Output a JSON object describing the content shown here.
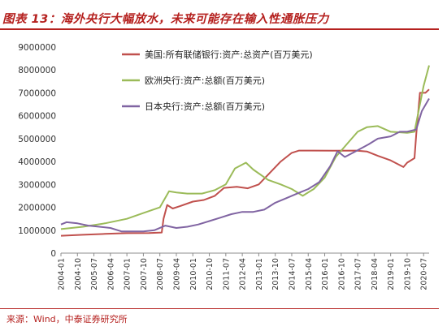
{
  "header": {
    "title": "图表 13：海外央行大幅放水，未来可能存在输入性通胀压力"
  },
  "footer": {
    "source": "来源：Wind，中泰证券研究所"
  },
  "colors": {
    "accent": "#b5211f",
    "fed": "#c0504d",
    "ecb": "#9bbb59",
    "boj": "#8064a2"
  },
  "chart_data": {
    "type": "line",
    "title": "",
    "xlabel": "",
    "ylabel": "",
    "ylim": [
      0,
      9000000
    ],
    "yticks": [
      0,
      1000000,
      2000000,
      3000000,
      4000000,
      5000000,
      6000000,
      7000000,
      8000000,
      9000000
    ],
    "ytick_labels": [
      "0",
      "1000000",
      "2000000",
      "3000000",
      "4000000",
      "5000000",
      "6000000",
      "7000000",
      "8000000",
      "9000000"
    ],
    "xlim": [
      "2004-01",
      "2020-10"
    ],
    "xticks": [
      "2004-01",
      "2004-10",
      "2005-07",
      "2006-04",
      "2007-01",
      "2007-10",
      "2008-07",
      "2009-04",
      "2010-01",
      "2010-10",
      "2011-07",
      "2012-04",
      "2013-01",
      "2013-10",
      "2014-07",
      "2015-04",
      "2016-01",
      "2016-10",
      "2017-07",
      "2018-04",
      "2019-01",
      "2019-10",
      "2020-07"
    ],
    "grid": false,
    "legend_position": "top-center",
    "series": [
      {
        "name": "美国:所有联储银行:资产:总资产(百万美元)",
        "color": "#c0504d",
        "points": [
          [
            "2004-01",
            760000
          ],
          [
            "2005-01",
            800000
          ],
          [
            "2006-01",
            840000
          ],
          [
            "2007-01",
            870000
          ],
          [
            "2008-01",
            880000
          ],
          [
            "2008-08",
            900000
          ],
          [
            "2008-09",
            1500000
          ],
          [
            "2008-11",
            2100000
          ],
          [
            "2009-02",
            1950000
          ],
          [
            "2009-06",
            2050000
          ],
          [
            "2010-01",
            2250000
          ],
          [
            "2010-07",
            2320000
          ],
          [
            "2011-01",
            2500000
          ],
          [
            "2011-06",
            2850000
          ],
          [
            "2012-01",
            2900000
          ],
          [
            "2012-07",
            2830000
          ],
          [
            "2013-01",
            3000000
          ],
          [
            "2013-07",
            3500000
          ],
          [
            "2014-01",
            4000000
          ],
          [
            "2014-07",
            4380000
          ],
          [
            "2014-11",
            4480000
          ],
          [
            "2015-06",
            4480000
          ],
          [
            "2016-06",
            4470000
          ],
          [
            "2017-06",
            4480000
          ],
          [
            "2017-12",
            4440000
          ],
          [
            "2018-06",
            4250000
          ],
          [
            "2019-01",
            4050000
          ],
          [
            "2019-08",
            3760000
          ],
          [
            "2019-10",
            3950000
          ],
          [
            "2020-02",
            4150000
          ],
          [
            "2020-03",
            5200000
          ],
          [
            "2020-05",
            7000000
          ],
          [
            "2020-08",
            7000000
          ],
          [
            "2020-10",
            7150000
          ]
        ]
      },
      {
        "name": "欧洲央行:资产:总额(百万美元)",
        "color": "#9bbb59",
        "points": [
          [
            "2004-01",
            1050000
          ],
          [
            "2005-01",
            1150000
          ],
          [
            "2006-01",
            1300000
          ],
          [
            "2007-01",
            1500000
          ],
          [
            "2007-10",
            1750000
          ],
          [
            "2008-07",
            2000000
          ],
          [
            "2008-12",
            2700000
          ],
          [
            "2009-04",
            2650000
          ],
          [
            "2009-10",
            2600000
          ],
          [
            "2010-06",
            2600000
          ],
          [
            "2011-01",
            2750000
          ],
          [
            "2011-07",
            3000000
          ],
          [
            "2011-12",
            3700000
          ],
          [
            "2012-06",
            3950000
          ],
          [
            "2012-10",
            3650000
          ],
          [
            "2013-06",
            3200000
          ],
          [
            "2014-01",
            3000000
          ],
          [
            "2014-07",
            2800000
          ],
          [
            "2015-01",
            2500000
          ],
          [
            "2015-07",
            2800000
          ],
          [
            "2016-01",
            3300000
          ],
          [
            "2016-07",
            4200000
          ],
          [
            "2017-01",
            4750000
          ],
          [
            "2017-07",
            5300000
          ],
          [
            "2017-12",
            5500000
          ],
          [
            "2018-06",
            5550000
          ],
          [
            "2019-01",
            5300000
          ],
          [
            "2019-10",
            5250000
          ],
          [
            "2020-02",
            5300000
          ],
          [
            "2020-05",
            6500000
          ],
          [
            "2020-07",
            7300000
          ],
          [
            "2020-10",
            8200000
          ]
        ]
      },
      {
        "name": "日本央行:资产:总额(百万美元)",
        "color": "#8064a2",
        "points": [
          [
            "2004-01",
            1250000
          ],
          [
            "2004-04",
            1350000
          ],
          [
            "2004-10",
            1300000
          ],
          [
            "2005-04",
            1200000
          ],
          [
            "2005-10",
            1150000
          ],
          [
            "2006-04",
            1100000
          ],
          [
            "2006-10",
            950000
          ],
          [
            "2007-04",
            950000
          ],
          [
            "2007-10",
            950000
          ],
          [
            "2008-04",
            1000000
          ],
          [
            "2008-10",
            1200000
          ],
          [
            "2009-04",
            1100000
          ],
          [
            "2009-10",
            1150000
          ],
          [
            "2010-04",
            1250000
          ],
          [
            "2010-10",
            1400000
          ],
          [
            "2011-04",
            1550000
          ],
          [
            "2011-10",
            1700000
          ],
          [
            "2012-04",
            1800000
          ],
          [
            "2012-10",
            1800000
          ],
          [
            "2013-04",
            1900000
          ],
          [
            "2013-10",
            2200000
          ],
          [
            "2014-04",
            2400000
          ],
          [
            "2014-10",
            2600000
          ],
          [
            "2015-04",
            2800000
          ],
          [
            "2015-10",
            3100000
          ],
          [
            "2016-04",
            3800000
          ],
          [
            "2016-08",
            4450000
          ],
          [
            "2016-12",
            4200000
          ],
          [
            "2017-06",
            4450000
          ],
          [
            "2018-01",
            4750000
          ],
          [
            "2018-06",
            5000000
          ],
          [
            "2019-01",
            5100000
          ],
          [
            "2019-06",
            5300000
          ],
          [
            "2019-10",
            5300000
          ],
          [
            "2020-03",
            5400000
          ],
          [
            "2020-06",
            6200000
          ],
          [
            "2020-10",
            6750000
          ]
        ]
      }
    ]
  }
}
